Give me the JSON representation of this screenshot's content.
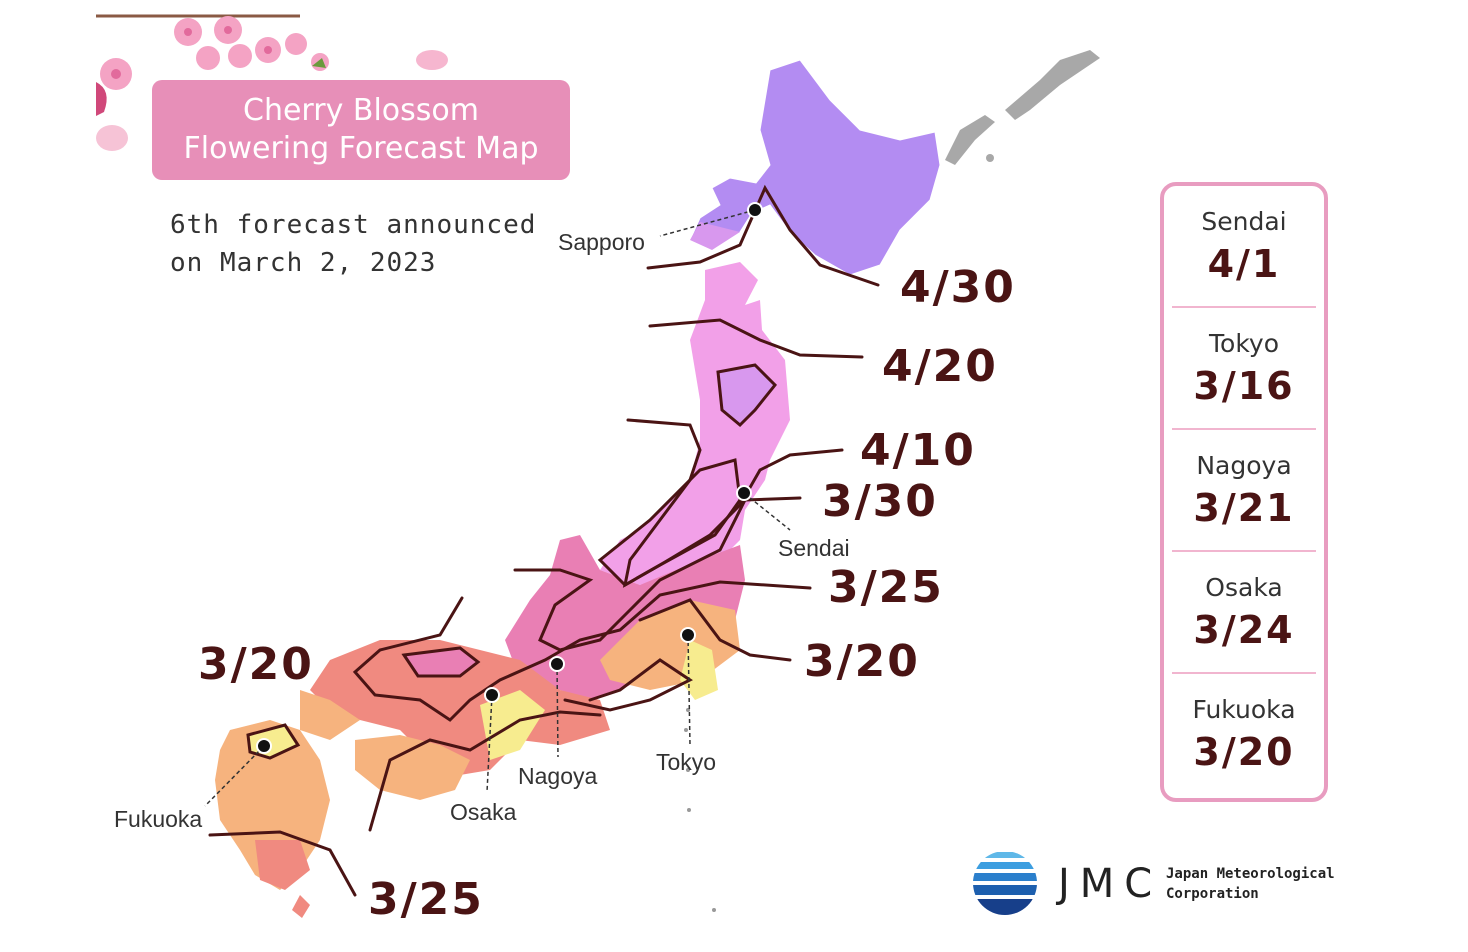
{
  "title": {
    "line1": "Cherry Blossom",
    "line2": "Flowering Forecast Map"
  },
  "subtitle": {
    "line1": "6th forecast announced",
    "line2": "on March 2, 2023"
  },
  "map": {
    "cities": {
      "sapporo": "Sapporo",
      "sendai": "Sendai",
      "tokyo": "Tokyo",
      "nagoya": "Nagoya",
      "osaka": "Osaka",
      "fukuoka": "Fukuoka"
    },
    "isolines": {
      "d430": "4/30",
      "d420": "4/20",
      "d410": "4/10",
      "d330": "3/30",
      "d325_east": "3/25",
      "d320_east": "3/20",
      "d320_west": "3/20",
      "d325_south": "3/25"
    },
    "zone_colors": {
      "apr30": "#b38cf2",
      "apr20": "#d898ee",
      "apr10": "#f2a0e8",
      "mar30": "#e97fb4",
      "mar25": "#f08a80",
      "mar20": "#f6b37e",
      "early": "#f7ec8f"
    }
  },
  "side_panel": {
    "items": [
      {
        "city": "Sendai",
        "date": "4/1"
      },
      {
        "city": "Tokyo",
        "date": "3/16"
      },
      {
        "city": "Nagoya",
        "date": "3/21"
      },
      {
        "city": "Osaka",
        "date": "3/24"
      },
      {
        "city": "Fukuoka",
        "date": "3/20"
      }
    ]
  },
  "logo": {
    "mark": "JMC",
    "name_line1": "Japan Meteorological",
    "name_line2": "Corporation"
  }
}
